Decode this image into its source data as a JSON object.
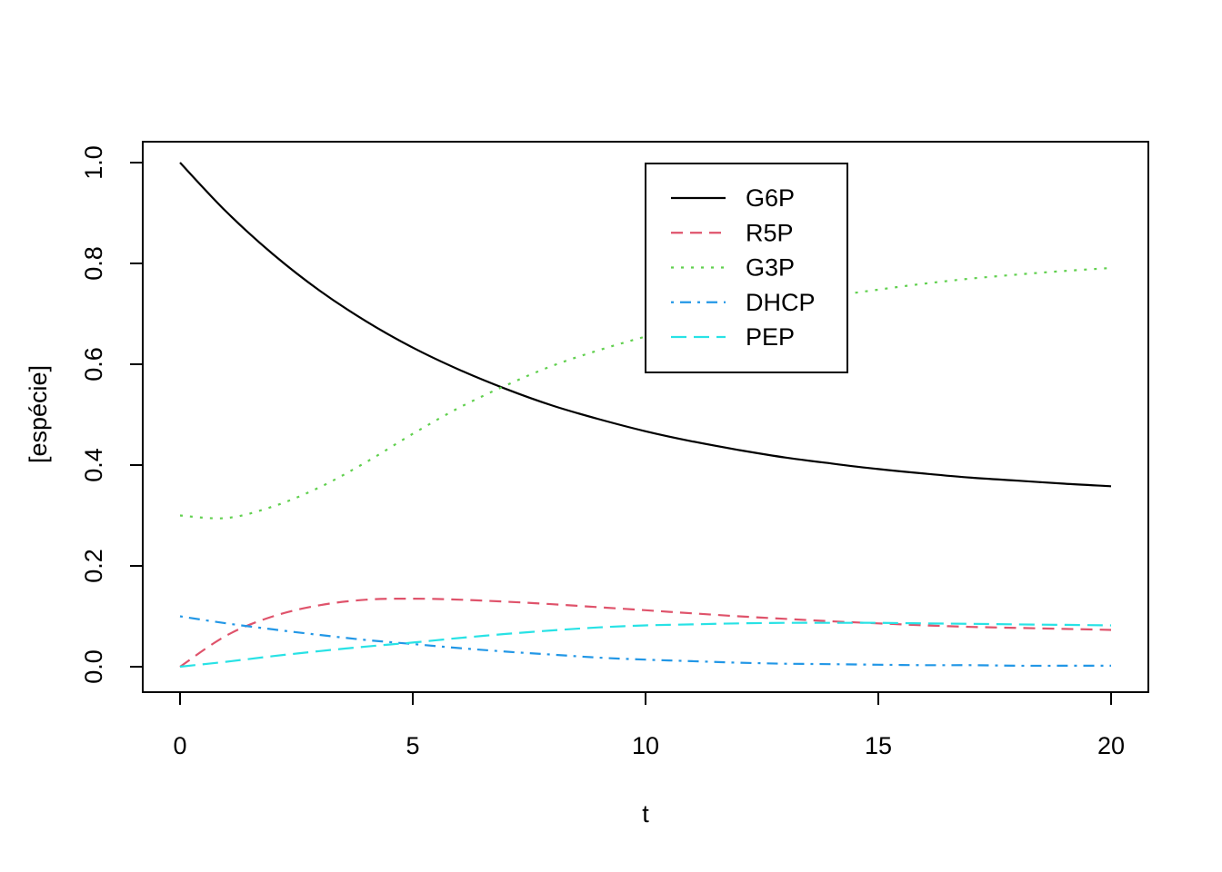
{
  "figure": {
    "background": "#ffffff",
    "axis_color": "#000000",
    "text_color": "#000000"
  },
  "chart_data": {
    "type": "line",
    "title": "",
    "xlabel": "t",
    "ylabel": "[espécie]",
    "xlim": [
      0,
      20
    ],
    "ylim": [
      0.0,
      1.0
    ],
    "xticks": [
      "0",
      "5",
      "10",
      "15",
      "20"
    ],
    "xtick_values": [
      0,
      5,
      10,
      15,
      20
    ],
    "yticks": [
      "0.0",
      "0.2",
      "0.4",
      "0.6",
      "0.8",
      "1.0"
    ],
    "ytick_values": [
      0.0,
      0.2,
      0.4,
      0.6,
      0.8,
      1.0
    ],
    "grid": false,
    "legend_position": "inside-top-center",
    "x": [
      0,
      1,
      2,
      3,
      4,
      5,
      6,
      7,
      8,
      9,
      10,
      11,
      12,
      13,
      14,
      15,
      16,
      17,
      18,
      19,
      20
    ],
    "series": [
      {
        "name": "G6P",
        "color": "#000000",
        "linetype": "solid",
        "values": [
          1.0,
          0.902,
          0.818,
          0.746,
          0.685,
          0.633,
          0.589,
          0.551,
          0.518,
          0.491,
          0.467,
          0.447,
          0.43,
          0.415,
          0.403,
          0.392,
          0.383,
          0.375,
          0.369,
          0.363,
          0.358
        ]
      },
      {
        "name": "R5P",
        "color": "#DF536B",
        "linetype": "dashed",
        "values": [
          0.0,
          0.062,
          0.1,
          0.122,
          0.133,
          0.135,
          0.133,
          0.129,
          0.124,
          0.118,
          0.112,
          0.106,
          0.1,
          0.095,
          0.09,
          0.086,
          0.082,
          0.079,
          0.077,
          0.075,
          0.073
        ]
      },
      {
        "name": "G3P",
        "color": "#61D04F",
        "linetype": "dotted",
        "values": [
          0.3,
          0.295,
          0.318,
          0.356,
          0.406,
          0.462,
          0.514,
          0.558,
          0.597,
          0.628,
          0.655,
          0.68,
          0.701,
          0.719,
          0.735,
          0.748,
          0.76,
          0.77,
          0.778,
          0.785,
          0.791
        ]
      },
      {
        "name": "DHCP",
        "color": "#2297E6",
        "linetype": "dotdash",
        "values": [
          0.1,
          0.086,
          0.074,
          0.063,
          0.053,
          0.045,
          0.037,
          0.03,
          0.024,
          0.018,
          0.014,
          0.011,
          0.008,
          0.006,
          0.005,
          0.004,
          0.003,
          0.003,
          0.002,
          0.002,
          0.002
        ]
      },
      {
        "name": "PEP",
        "color": "#28E2E5",
        "linetype": "longdash",
        "values": [
          0.0,
          0.01,
          0.021,
          0.031,
          0.04,
          0.048,
          0.057,
          0.065,
          0.072,
          0.078,
          0.082,
          0.084,
          0.086,
          0.087,
          0.087,
          0.087,
          0.086,
          0.085,
          0.084,
          0.083,
          0.082
        ]
      }
    ]
  }
}
